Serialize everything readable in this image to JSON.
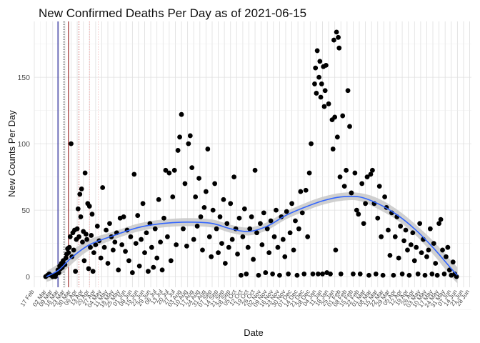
{
  "chart_data": {
    "type": "scatter",
    "title": "New Confirmed Deaths Per Day as of 2021-06-15",
    "xlabel": "Date",
    "ylabel": "New Counts Per Day",
    "x_range": [
      "2020-02-17",
      "2021-06-30"
    ],
    "ylim": [
      -8,
      192
    ],
    "y_ticks": [
      0,
      50,
      100,
      150
    ],
    "x_ticks": [
      "2020-02-17",
      "2020-03-02",
      "2020-03-09",
      "2020-03-16",
      "2020-03-23",
      "2020-03-30",
      "2020-04-06",
      "2020-04-13",
      "2020-04-20",
      "2020-04-27",
      "2020-05-04",
      "2020-05-11",
      "2020-05-18",
      "2020-05-25",
      "2020-06-01",
      "2020-06-08",
      "2020-06-15",
      "2020-06-22",
      "2020-06-29",
      "2020-07-06",
      "2020-07-13",
      "2020-07-20",
      "2020-07-27",
      "2020-08-03",
      "2020-08-10",
      "2020-08-17",
      "2020-08-24",
      "2020-08-31",
      "2020-09-07",
      "2020-09-14",
      "2020-09-21",
      "2020-09-28",
      "2020-10-05",
      "2020-10-12",
      "2020-10-19",
      "2020-10-26",
      "2020-11-02",
      "2020-11-09",
      "2020-11-16",
      "2020-11-23",
      "2020-11-30",
      "2020-12-07",
      "2020-12-14",
      "2020-12-21",
      "2020-12-28",
      "2021-01-04",
      "2021-01-11",
      "2021-01-18",
      "2021-01-25",
      "2021-02-01",
      "2021-02-08",
      "2021-02-15",
      "2021-02-22",
      "2021-03-01",
      "2021-03-08",
      "2021-03-15",
      "2021-03-22",
      "2021-03-29",
      "2021-04-05",
      "2021-04-12",
      "2021-04-19",
      "2021-04-26",
      "2021-05-03",
      "2021-05-10",
      "2021-05-17",
      "2021-05-24",
      "2021-05-31",
      "2021-06-07",
      "2021-06-14",
      "2021-06-21",
      "2021-06-28"
    ],
    "x_tick_labels": [
      "17 Feb",
      "02 Mar",
      "09 Mar",
      "16 Mar",
      "23 Mar",
      "30 Mar",
      "06 Apr",
      "13 Apr",
      "20 Apr",
      "27 Apr",
      "04 May",
      "11 May",
      "18 May",
      "25 May",
      "01 Jun",
      "08 Jun",
      "15 Jun",
      "22 Jun",
      "29 Jun",
      "06 Jul",
      "13 Jul",
      "20 Jul",
      "27 Jul",
      "03 Aug",
      "10 Aug",
      "17 Aug",
      "24 Aug",
      "31 Aug",
      "07 Sep",
      "14 Sep",
      "21 Sep",
      "28 Sep",
      "05 Oct",
      "12 Oct",
      "19 Oct",
      "26 Oct",
      "02 Nov",
      "09 Nov",
      "16 Nov",
      "23 Nov",
      "30 Nov",
      "07 Dec",
      "14 Dec",
      "21 Dec",
      "28 Dec",
      "04 Jan",
      "11 Jan",
      "18 Jan",
      "25 Jan",
      "01 Feb",
      "08 Feb",
      "15 Feb",
      "22 Feb",
      "01 Mar",
      "08 Mar",
      "15 Mar",
      "22 Mar",
      "29 Mar",
      "05 Apr",
      "12 Apr",
      "19 Apr",
      "26 Apr",
      "03 May",
      "10 May",
      "17 May",
      "24 May",
      "31 May",
      "07 Jun",
      "14 Jun",
      "21 Jun",
      "28 Jun"
    ],
    "grid": true,
    "vertical_lines": [
      {
        "date": "2020-03-15",
        "color": "#00008b",
        "style": "solid"
      },
      {
        "date": "2020-03-22",
        "color": "#000000",
        "style": "dotted"
      },
      {
        "date": "2020-03-27",
        "color": "#8b0000",
        "style": "solid"
      },
      {
        "date": "2020-04-08",
        "color": "#cd5c5c",
        "style": "dotted"
      },
      {
        "date": "2020-04-20",
        "color": "#f4a6a6",
        "style": "dotted"
      },
      {
        "date": "2020-04-30",
        "color": "#f7c4c4",
        "style": "dotted"
      }
    ],
    "smooth_line": {
      "x": [
        "2020-03-02",
        "2020-03-16",
        "2020-03-30",
        "2020-04-20",
        "2020-05-18",
        "2020-06-15",
        "2020-07-13",
        "2020-08-10",
        "2020-09-07",
        "2020-09-28",
        "2020-10-19",
        "2020-11-09",
        "2020-11-30",
        "2020-12-21",
        "2021-01-11",
        "2021-02-01",
        "2021-02-22",
        "2021-03-15",
        "2021-04-05",
        "2021-04-26",
        "2021-05-17",
        "2021-06-07",
        "2021-06-14"
      ],
      "y": [
        0,
        5,
        14,
        24,
        31,
        37,
        40,
        41,
        40,
        36,
        34,
        38,
        46,
        52,
        57,
        60,
        60,
        55,
        47,
        36,
        22,
        6,
        1
      ],
      "band": [
        4,
        5,
        5,
        4,
        3,
        3,
        3,
        3,
        3,
        3,
        3,
        3,
        3,
        3,
        3,
        3,
        3,
        4,
        4,
        4,
        5,
        6,
        6
      ],
      "color": "#3366ff",
      "band_color": "#c8c8c8"
    },
    "points": [
      [
        "2020-03-01",
        0
      ],
      [
        "2020-03-03",
        1
      ],
      [
        "2020-03-05",
        2
      ],
      [
        "2020-03-07",
        1
      ],
      [
        "2020-03-09",
        0
      ],
      [
        "2020-03-11",
        1
      ],
      [
        "2020-03-12",
        0
      ],
      [
        "2020-03-13",
        2
      ],
      [
        "2020-03-15",
        5
      ],
      [
        "2020-03-16",
        3
      ],
      [
        "2020-03-17",
        8
      ],
      [
        "2020-03-18",
        6
      ],
      [
        "2020-03-19",
        10
      ],
      [
        "2020-03-20",
        7
      ],
      [
        "2020-03-21",
        12
      ],
      [
        "2020-03-23",
        9
      ],
      [
        "2020-03-24",
        14
      ],
      [
        "2020-03-25",
        17
      ],
      [
        "2020-03-26",
        21
      ],
      [
        "2020-03-27",
        18
      ],
      [
        "2020-03-28",
        22
      ],
      [
        "2020-03-29",
        30
      ],
      [
        "2020-03-30",
        100
      ],
      [
        "2020-03-31",
        15
      ],
      [
        "2020-04-01",
        33
      ],
      [
        "2020-04-02",
        20
      ],
      [
        "2020-04-03",
        35
      ],
      [
        "2020-04-04",
        4
      ],
      [
        "2020-04-05",
        28
      ],
      [
        "2020-04-06",
        36
      ],
      [
        "2020-04-07",
        51
      ],
      [
        "2020-04-08",
        30
      ],
      [
        "2020-04-09",
        62
      ],
      [
        "2020-04-10",
        45
      ],
      [
        "2020-04-11",
        66
      ],
      [
        "2020-04-12",
        26
      ],
      [
        "2020-04-13",
        34
      ],
      [
        "2020-04-14",
        12
      ],
      [
        "2020-04-15",
        78
      ],
      [
        "2020-04-16",
        32
      ],
      [
        "2020-04-17",
        28
      ],
      [
        "2020-04-18",
        55
      ],
      [
        "2020-04-19",
        6
      ],
      [
        "2020-04-20",
        53
      ],
      [
        "2020-04-21",
        22
      ],
      [
        "2020-04-22",
        31
      ],
      [
        "2020-04-23",
        47
      ],
      [
        "2020-04-24",
        4
      ],
      [
        "2020-04-25",
        18
      ],
      [
        "2020-04-27",
        24
      ],
      [
        "2020-04-29",
        38
      ],
      [
        "2020-05-01",
        27
      ],
      [
        "2020-05-03",
        14
      ],
      [
        "2020-05-05",
        67
      ],
      [
        "2020-05-07",
        22
      ],
      [
        "2020-05-09",
        35
      ],
      [
        "2020-05-11",
        10
      ],
      [
        "2020-05-13",
        40
      ],
      [
        "2020-05-15",
        30
      ],
      [
        "2020-05-17",
        20
      ],
      [
        "2020-05-19",
        26
      ],
      [
        "2020-05-21",
        33
      ],
      [
        "2020-05-23",
        5
      ],
      [
        "2020-05-25",
        44
      ],
      [
        "2020-05-27",
        24
      ],
      [
        "2020-05-29",
        45
      ],
      [
        "2020-05-31",
        19
      ],
      [
        "2020-06-02",
        35
      ],
      [
        "2020-06-04",
        12
      ],
      [
        "2020-06-06",
        30
      ],
      [
        "2020-06-08",
        3
      ],
      [
        "2020-06-10",
        77
      ],
      [
        "2020-06-12",
        25
      ],
      [
        "2020-06-14",
        46
      ],
      [
        "2020-06-16",
        8
      ],
      [
        "2020-06-18",
        28
      ],
      [
        "2020-06-20",
        55
      ],
      [
        "2020-06-22",
        18
      ],
      [
        "2020-06-24",
        33
      ],
      [
        "2020-06-26",
        4
      ],
      [
        "2020-06-28",
        40
      ],
      [
        "2020-06-30",
        22
      ],
      [
        "2020-07-02",
        7
      ],
      [
        "2020-07-04",
        36
      ],
      [
        "2020-07-06",
        14
      ],
      [
        "2020-07-08",
        58
      ],
      [
        "2020-07-10",
        26
      ],
      [
        "2020-07-12",
        5
      ],
      [
        "2020-07-14",
        44
      ],
      [
        "2020-07-16",
        80
      ],
      [
        "2020-07-18",
        30
      ],
      [
        "2020-07-20",
        78
      ],
      [
        "2020-07-22",
        12
      ],
      [
        "2020-07-24",
        60
      ],
      [
        "2020-07-26",
        80
      ],
      [
        "2020-07-28",
        24
      ],
      [
        "2020-07-30",
        95
      ],
      [
        "2020-08-01",
        105
      ],
      [
        "2020-08-03",
        122
      ],
      [
        "2020-08-05",
        36
      ],
      [
        "2020-08-07",
        70
      ],
      [
        "2020-08-09",
        23
      ],
      [
        "2020-08-11",
        100
      ],
      [
        "2020-08-13",
        106
      ],
      [
        "2020-08-15",
        82
      ],
      [
        "2020-08-17",
        28
      ],
      [
        "2020-08-19",
        60
      ],
      [
        "2020-08-21",
        38
      ],
      [
        "2020-08-23",
        74
      ],
      [
        "2020-08-25",
        45
      ],
      [
        "2020-08-27",
        20
      ],
      [
        "2020-08-29",
        52
      ],
      [
        "2020-08-31",
        64
      ],
      [
        "2020-09-02",
        96
      ],
      [
        "2020-09-04",
        30
      ],
      [
        "2020-09-06",
        15
      ],
      [
        "2020-09-08",
        50
      ],
      [
        "2020-09-10",
        70
      ],
      [
        "2020-09-12",
        36
      ],
      [
        "2020-09-14",
        18
      ],
      [
        "2020-09-16",
        45
      ],
      [
        "2020-09-18",
        25
      ],
      [
        "2020-09-20",
        58
      ],
      [
        "2020-09-22",
        10
      ],
      [
        "2020-09-24",
        40
      ],
      [
        "2020-09-26",
        22
      ],
      [
        "2020-09-28",
        55
      ],
      [
        "2020-09-30",
        28
      ],
      [
        "2020-10-02",
        75
      ],
      [
        "2020-10-04",
        36
      ],
      [
        "2020-10-06",
        17
      ],
      [
        "2020-10-08",
        44
      ],
      [
        "2020-10-10",
        1
      ],
      [
        "2020-10-12",
        30
      ],
      [
        "2020-10-14",
        51
      ],
      [
        "2020-10-16",
        2
      ],
      [
        "2020-10-18",
        22
      ],
      [
        "2020-10-20",
        36
      ],
      [
        "2020-10-22",
        45
      ],
      [
        "2020-10-24",
        13
      ],
      [
        "2020-10-26",
        80
      ],
      [
        "2020-10-28",
        33
      ],
      [
        "2020-10-30",
        1
      ],
      [
        "2020-11-01",
        40
      ],
      [
        "2020-11-03",
        24
      ],
      [
        "2020-11-05",
        48
      ],
      [
        "2020-11-07",
        3
      ],
      [
        "2020-11-09",
        36
      ],
      [
        "2020-11-11",
        18
      ],
      [
        "2020-11-13",
        42
      ],
      [
        "2020-11-15",
        2
      ],
      [
        "2020-11-17",
        30
      ],
      [
        "2020-11-19",
        50
      ],
      [
        "2020-11-21",
        22
      ],
      [
        "2020-11-23",
        1
      ],
      [
        "2020-11-25",
        45
      ],
      [
        "2020-11-27",
        28
      ],
      [
        "2020-11-29",
        15
      ],
      [
        "2020-12-01",
        49
      ],
      [
        "2020-12-03",
        2
      ],
      [
        "2020-12-05",
        33
      ],
      [
        "2020-12-07",
        55
      ],
      [
        "2020-12-09",
        20
      ],
      [
        "2020-12-11",
        42
      ],
      [
        "2020-12-13",
        1
      ],
      [
        "2020-12-15",
        36
      ],
      [
        "2020-12-17",
        64
      ],
      [
        "2020-12-19",
        48
      ],
      [
        "2020-12-21",
        2
      ],
      [
        "2020-12-23",
        65
      ],
      [
        "2020-12-25",
        30
      ],
      [
        "2020-12-27",
        78
      ],
      [
        "2020-12-29",
        100
      ],
      [
        "2020-12-31",
        2
      ],
      [
        "2021-01-02",
        145
      ],
      [
        "2021-01-03",
        157
      ],
      [
        "2021-01-04",
        138
      ],
      [
        "2021-01-05",
        170
      ],
      [
        "2021-01-06",
        2
      ],
      [
        "2021-01-07",
        150
      ],
      [
        "2021-01-08",
        162
      ],
      [
        "2021-01-09",
        135
      ],
      [
        "2021-01-10",
        145
      ],
      [
        "2021-01-11",
        2
      ],
      [
        "2021-01-12",
        158
      ],
      [
        "2021-01-13",
        128
      ],
      [
        "2021-01-14",
        140
      ],
      [
        "2021-01-15",
        159
      ],
      [
        "2021-01-16",
        3
      ],
      [
        "2021-01-18",
        130
      ],
      [
        "2021-01-20",
        2
      ],
      [
        "2021-01-22",
        118
      ],
      [
        "2021-01-23",
        96
      ],
      [
        "2021-01-24",
        178
      ],
      [
        "2021-01-25",
        120
      ],
      [
        "2021-01-26",
        20
      ],
      [
        "2021-01-27",
        184
      ],
      [
        "2021-01-28",
        105
      ],
      [
        "2021-01-29",
        180
      ],
      [
        "2021-01-30",
        172
      ],
      [
        "2021-01-31",
        75
      ],
      [
        "2021-02-01",
        2
      ],
      [
        "2021-02-03",
        121
      ],
      [
        "2021-02-05",
        68
      ],
      [
        "2021-02-07",
        80
      ],
      [
        "2021-02-09",
        140
      ],
      [
        "2021-02-11",
        113
      ],
      [
        "2021-02-13",
        63
      ],
      [
        "2021-02-15",
        2
      ],
      [
        "2021-02-17",
        78
      ],
      [
        "2021-02-19",
        50
      ],
      [
        "2021-02-21",
        47
      ],
      [
        "2021-02-23",
        2
      ],
      [
        "2021-02-25",
        70
      ],
      [
        "2021-02-27",
        40
      ],
      [
        "2021-03-01",
        55
      ],
      [
        "2021-03-03",
        75
      ],
      [
        "2021-03-05",
        1
      ],
      [
        "2021-03-07",
        77
      ],
      [
        "2021-03-09",
        80
      ],
      [
        "2021-03-11",
        55
      ],
      [
        "2021-03-13",
        2
      ],
      [
        "2021-03-15",
        44
      ],
      [
        "2021-03-17",
        68
      ],
      [
        "2021-03-19",
        30
      ],
      [
        "2021-03-21",
        1
      ],
      [
        "2021-03-23",
        60
      ],
      [
        "2021-03-25",
        52
      ],
      [
        "2021-03-27",
        35
      ],
      [
        "2021-03-29",
        16
      ],
      [
        "2021-03-31",
        48
      ],
      [
        "2021-04-02",
        1
      ],
      [
        "2021-04-04",
        30
      ],
      [
        "2021-04-06",
        45
      ],
      [
        "2021-04-08",
        14
      ],
      [
        "2021-04-10",
        38
      ],
      [
        "2021-04-12",
        2
      ],
      [
        "2021-04-14",
        27
      ],
      [
        "2021-04-16",
        35
      ],
      [
        "2021-04-18",
        20
      ],
      [
        "2021-04-20",
        1
      ],
      [
        "2021-04-22",
        24
      ],
      [
        "2021-04-24",
        33
      ],
      [
        "2021-04-26",
        12
      ],
      [
        "2021-04-28",
        22
      ],
      [
        "2021-04-30",
        2
      ],
      [
        "2021-05-02",
        40
      ],
      [
        "2021-05-04",
        18
      ],
      [
        "2021-05-06",
        28
      ],
      [
        "2021-05-08",
        1
      ],
      [
        "2021-05-10",
        15
      ],
      [
        "2021-05-12",
        20
      ],
      [
        "2021-05-14",
        36
      ],
      [
        "2021-05-16",
        2
      ],
      [
        "2021-05-18",
        25
      ],
      [
        "2021-05-20",
        10
      ],
      [
        "2021-05-22",
        1
      ],
      [
        "2021-05-24",
        40
      ],
      [
        "2021-05-26",
        43
      ],
      [
        "2021-05-28",
        20
      ],
      [
        "2021-05-30",
        2
      ],
      [
        "2021-06-01",
        15
      ],
      [
        "2021-06-03",
        22
      ],
      [
        "2021-06-05",
        5
      ],
      [
        "2021-06-07",
        1
      ],
      [
        "2021-06-09",
        11
      ],
      [
        "2021-06-11",
        2
      ],
      [
        "2021-06-13",
        0
      ]
    ],
    "point_color": "#000000"
  }
}
